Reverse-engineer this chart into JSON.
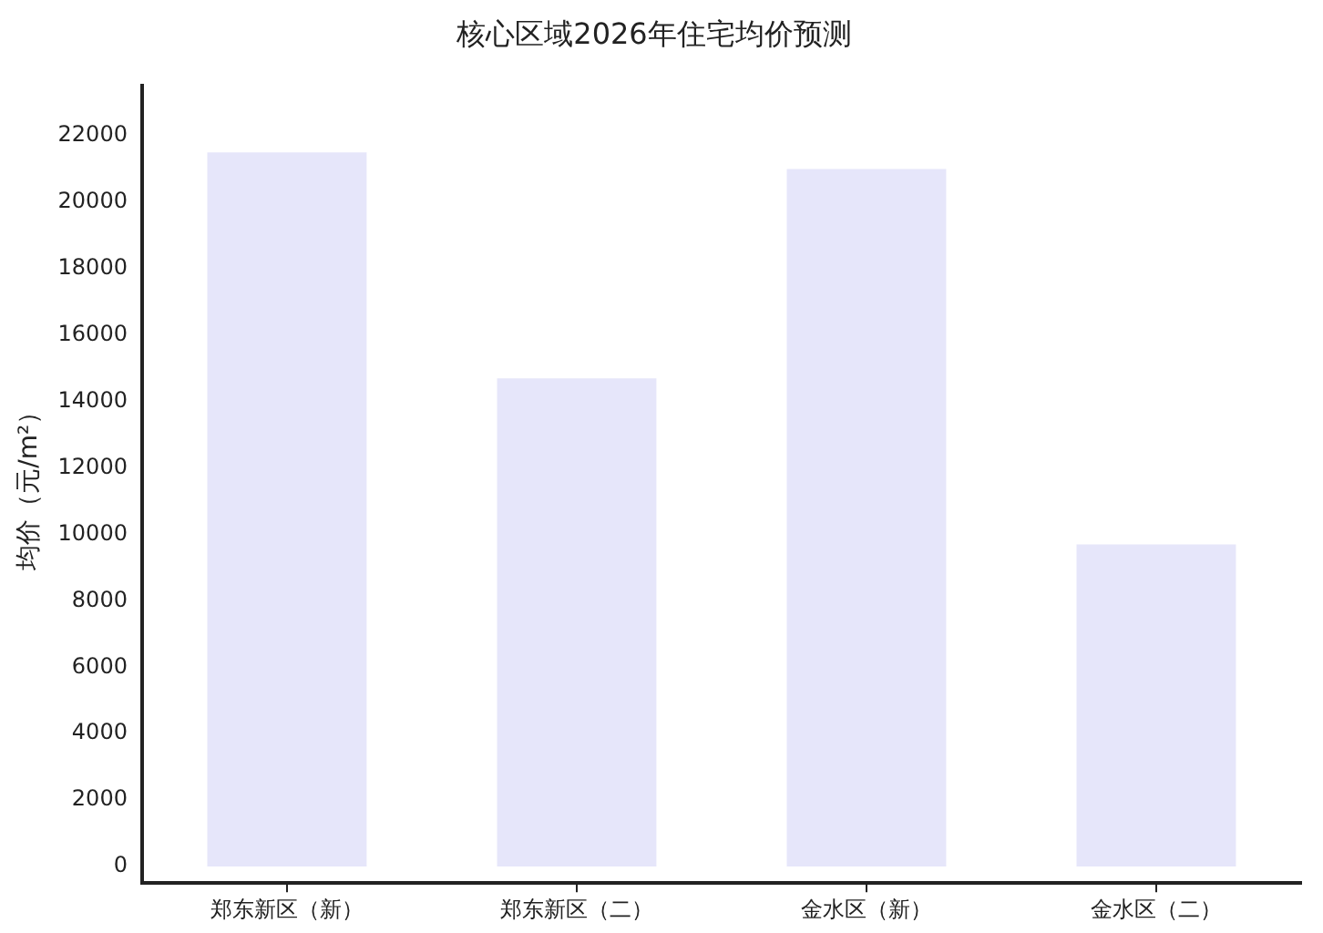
{
  "chart_data": {
    "type": "bar",
    "title": "核心区域2026年住宅均价预测",
    "ylabel": "均价（元/m²）",
    "categories": [
      "郑东新区（新）",
      "郑东新区（二）",
      "金水区（新）",
      "金水区（二）"
    ],
    "values": [
      21500,
      14700,
      21000,
      9700
    ],
    "color": "#e6e6fa",
    "ylim": [
      -500,
      23500
    ],
    "yticks": [
      0,
      2000,
      4000,
      6000,
      8000,
      10000,
      12000,
      14000,
      16000,
      18000,
      20000,
      22000
    ],
    "grid": false,
    "legend": false
  }
}
